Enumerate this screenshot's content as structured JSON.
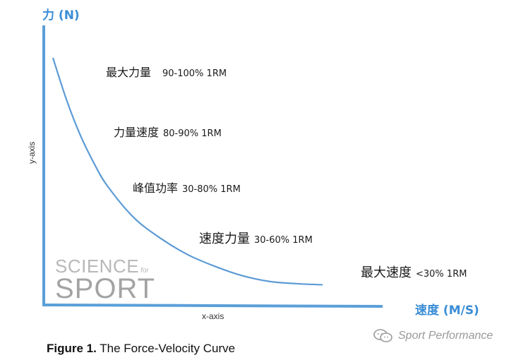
{
  "chart_data": {
    "type": "line",
    "title": "",
    "ylabel": "力 (N)",
    "xlabel": "速度 (M/S)",
    "ylabel_small": "y-axis",
    "xlabel_small": "x-axis",
    "series": [
      {
        "values": [
          {
            "x": 0.0,
            "y": 1.0
          },
          {
            "x": 0.05,
            "y": 0.82
          },
          {
            "x": 0.1,
            "y": 0.67
          },
          {
            "x": 0.15,
            "y": 0.55
          },
          {
            "x": 0.2,
            "y": 0.45
          },
          {
            "x": 0.3,
            "y": 0.31
          },
          {
            "x": 0.4,
            "y": 0.22
          },
          {
            "x": 0.5,
            "y": 0.15
          },
          {
            "x": 0.6,
            "y": 0.1
          },
          {
            "x": 0.7,
            "y": 0.06
          },
          {
            "x": 0.8,
            "y": 0.035
          },
          {
            "x": 0.9,
            "y": 0.025
          },
          {
            "x": 1.0,
            "y": 0.02
          }
        ]
      }
    ],
    "color": "#5c9bd5",
    "axis_color": "#5a9fd8",
    "annotations": [
      {
        "zh": "最大力量",
        "pct": "90-100% 1RM"
      },
      {
        "zh": "力量速度",
        "pct": "80-90% 1RM"
      },
      {
        "zh": "峰值功率",
        "pct": "30-80% 1RM"
      },
      {
        "zh": "速度力量",
        "pct": "30-60% 1RM"
      },
      {
        "zh": "最大速度",
        "pct": "<30% 1RM"
      }
    ]
  },
  "caption": {
    "bold": "Figure 1.",
    "text": " The Force-Velocity Curve"
  },
  "logo": {
    "line1": "SCIENCE",
    "line1_suffix": "for",
    "line2": "SPORT"
  },
  "watermark": {
    "icon": "wechat-icon",
    "text": "Sport Performance"
  }
}
